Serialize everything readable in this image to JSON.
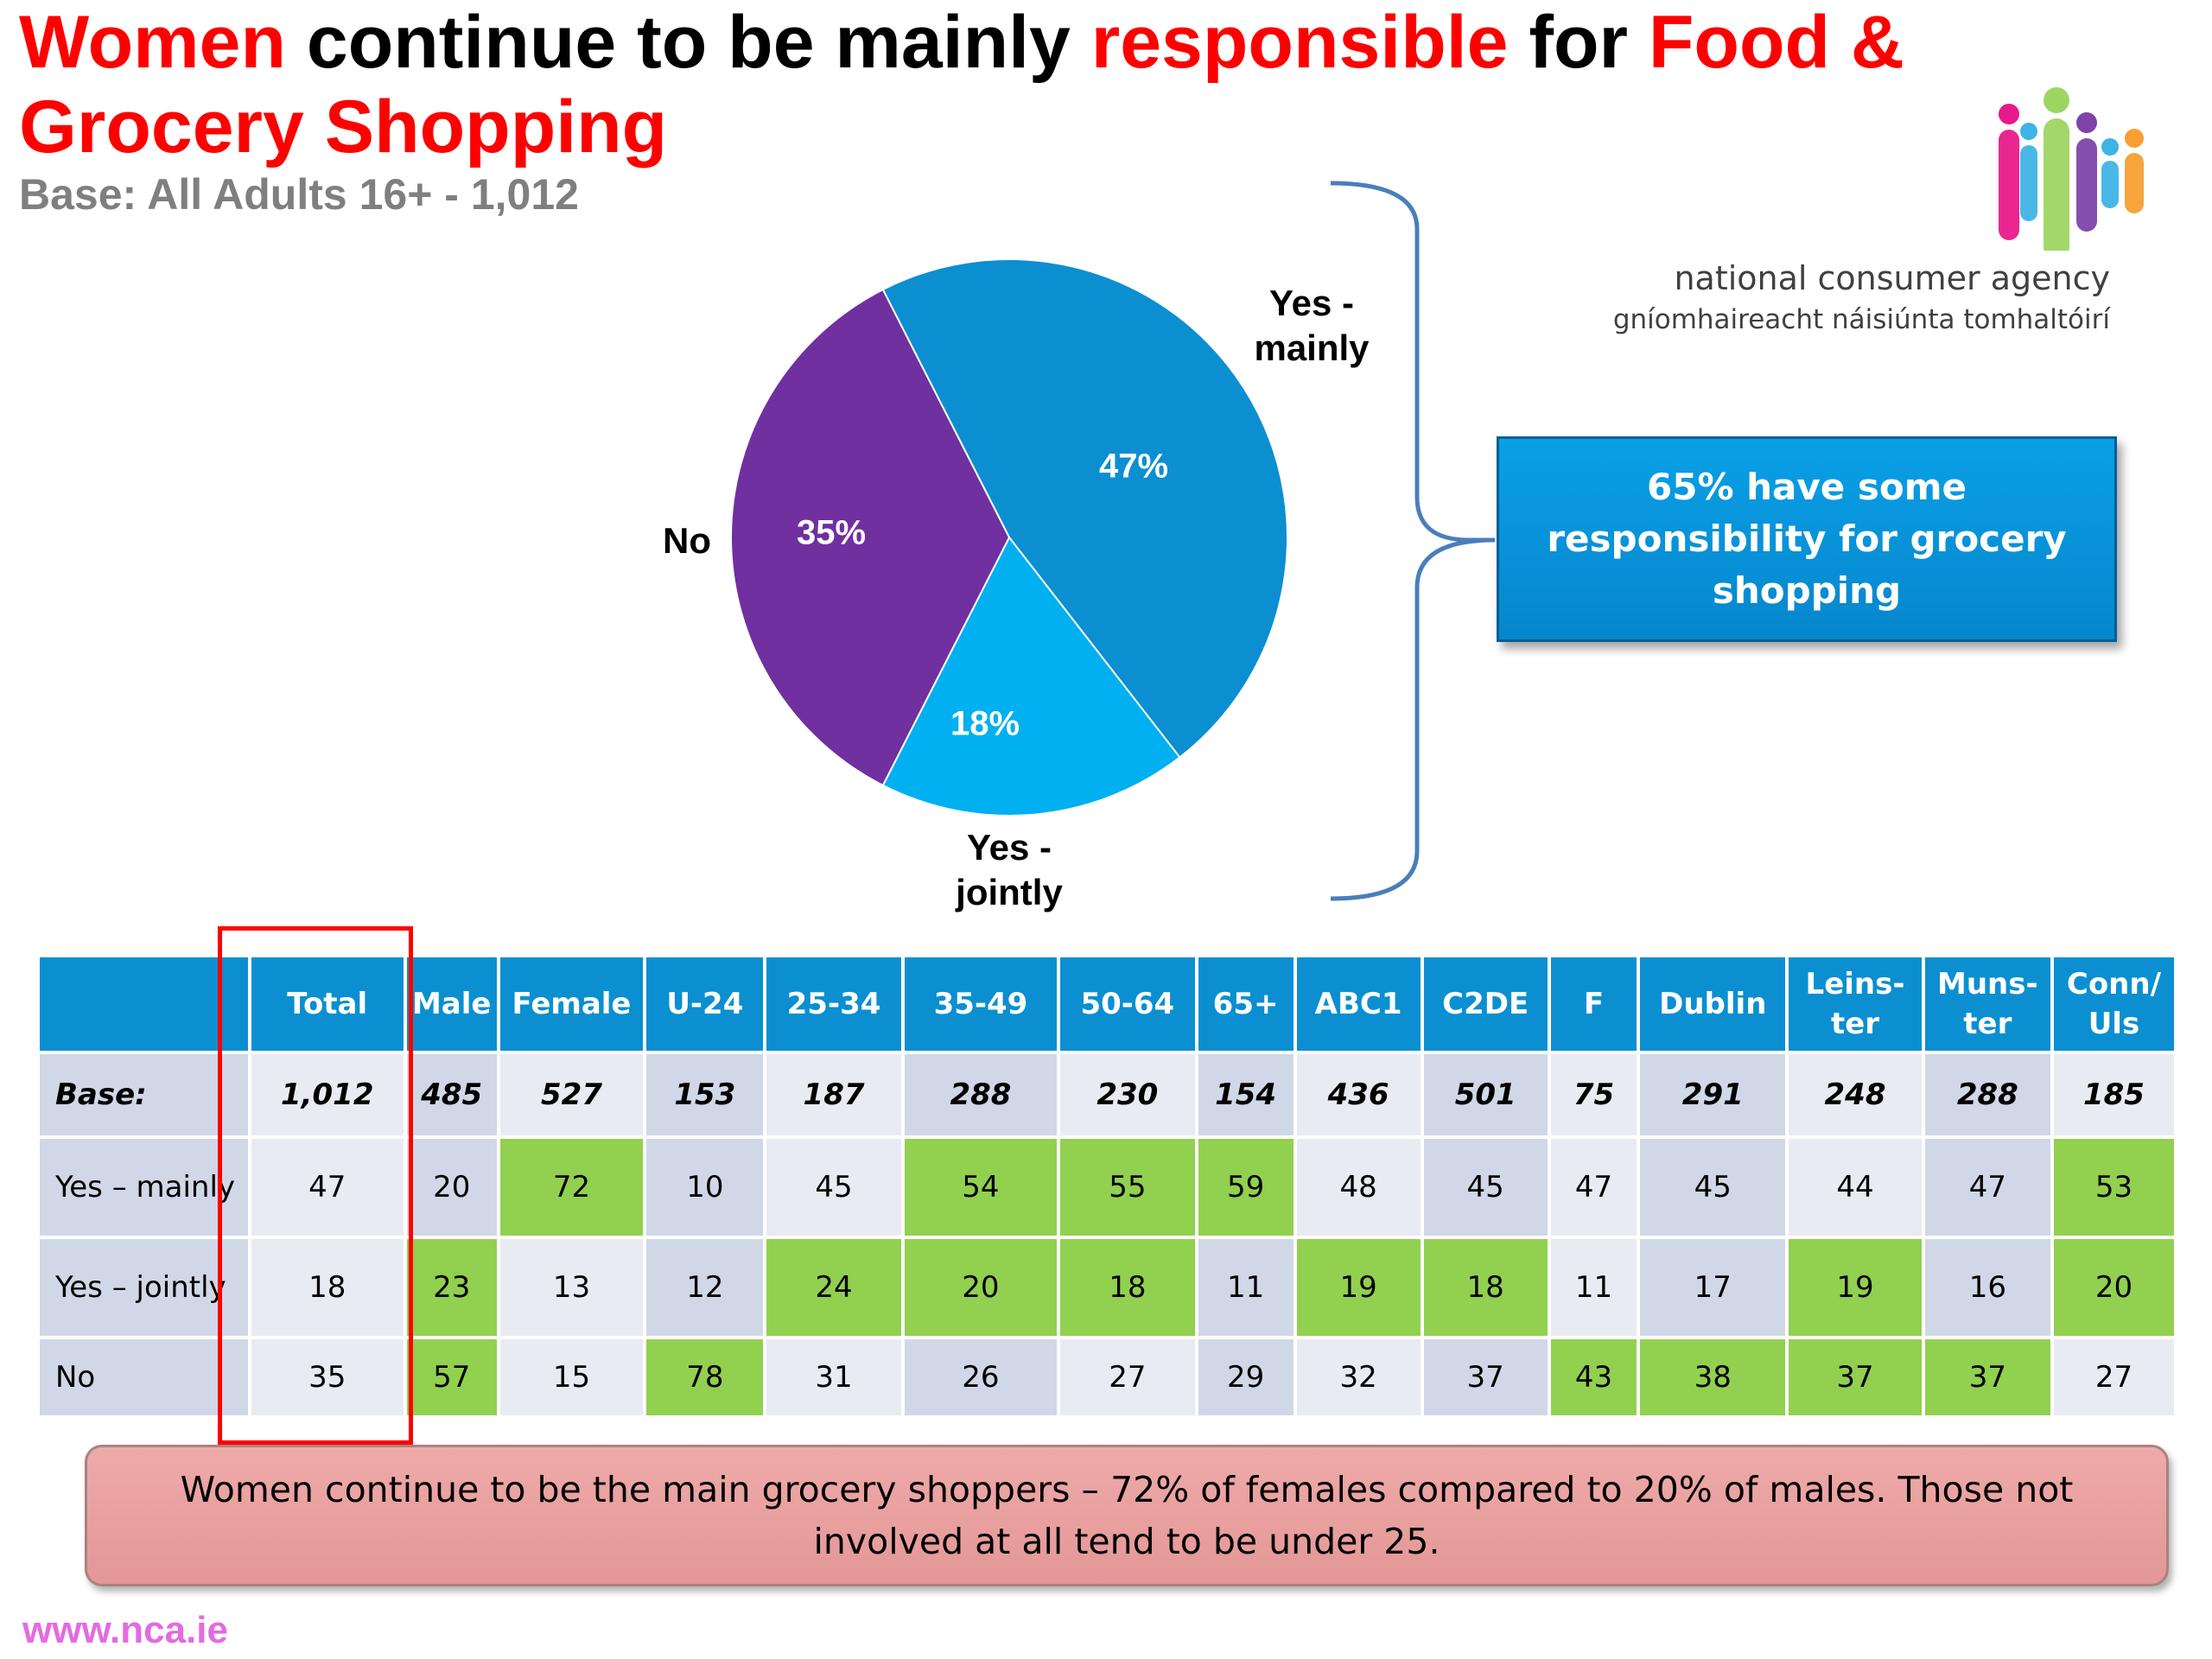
{
  "title": {
    "part1": "Women",
    "part2": " continue to be mainly ",
    "part3": "responsible",
    "part4": " for ",
    "part5": "Food &",
    "part6": "Grocery Shopping"
  },
  "subtitle": "Base: All Adults 16+ - 1,012",
  "logo": {
    "line1": "national consumer agency",
    "line2": "gníomhaireacht náisiúnta tomhaltóirí",
    "colors": [
      "#e6007e",
      "#92d050",
      "#7030a0",
      "#29abe2",
      "#f7941d"
    ]
  },
  "chart_data": {
    "type": "pie",
    "slices": [
      {
        "label": "Yes - mainly",
        "value": 47,
        "value_label": "47%",
        "color": "#0b8fd1"
      },
      {
        "label": "Yes - jointly",
        "value": 18,
        "value_label": "18%",
        "color": "#00b0f0"
      },
      {
        "label": "No",
        "value": 35,
        "value_label": "35%",
        "color": "#7030a0"
      }
    ]
  },
  "pie_labels": {
    "yes_mainly": [
      "Yes -",
      "mainly"
    ],
    "yes_jointly": [
      "Yes -",
      "jointly"
    ],
    "no": "No"
  },
  "callout": "65% have some responsibility for grocery shopping",
  "table": {
    "columns": [
      "",
      "Total",
      "Male",
      "Female",
      "U-24",
      "25-34",
      "35-49",
      "50-64",
      "65+",
      "ABC1",
      "C2DE",
      "F",
      "Dublin",
      "Leins-ter",
      "Muns-ter",
      "Conn/ Uls"
    ],
    "base_row": {
      "label": "Base:",
      "values": [
        "1,012",
        "485",
        "527",
        "153",
        "187",
        "288",
        "230",
        "154",
        "436",
        "501",
        "75",
        "291",
        "248",
        "288",
        "185"
      ]
    },
    "rows": [
      {
        "label": "Yes – mainly",
        "values": [
          "47",
          "20",
          "72",
          "10",
          "45",
          "54",
          "55",
          "59",
          "48",
          "45",
          "47",
          "45",
          "44",
          "47",
          "53"
        ],
        "highlight": [
          2,
          5,
          6,
          7,
          14
        ]
      },
      {
        "label": "Yes – jointly",
        "values": [
          "18",
          "23",
          "13",
          "12",
          "24",
          "20",
          "18",
          "11",
          "19",
          "18",
          "11",
          "17",
          "19",
          "16",
          "20"
        ],
        "highlight": [
          1,
          4,
          5,
          6,
          8,
          9,
          12,
          14
        ]
      },
      {
        "label": "No",
        "values": [
          "35",
          "57",
          "15",
          "78",
          "31",
          "26",
          "27",
          "29",
          "32",
          "37",
          "43",
          "38",
          "37",
          "37",
          "27"
        ],
        "highlight": [
          1,
          3,
          10,
          11,
          12,
          13
        ]
      }
    ]
  },
  "summary": "Women continue to be the main grocery shoppers – 72% of females compared to 20% of males. Those not involved at all tend to be under 25.",
  "footer_url": "www.nca.ie"
}
